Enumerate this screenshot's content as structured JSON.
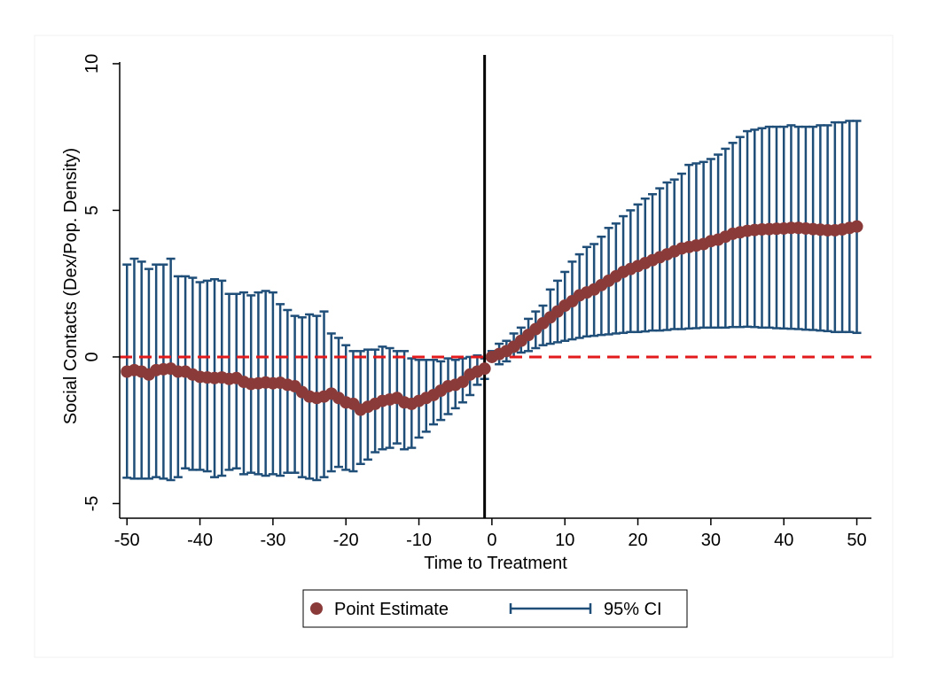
{
  "chart_data": {
    "type": "scatter",
    "title": "",
    "xlabel": "Time to Treatment",
    "ylabel": "Social Contacts (Dex/Pop. Density)",
    "xlim": [
      -51,
      52
    ],
    "ylim": [
      -5.5,
      10.3
    ],
    "xticks": [
      -50,
      -40,
      -30,
      -20,
      -10,
      0,
      10,
      20,
      30,
      40,
      50
    ],
    "xtick_labels": [
      "-50",
      "-40",
      "-30",
      "-20",
      "-10",
      "0",
      "10",
      "20",
      "30",
      "40",
      "50"
    ],
    "yticks": [
      -5,
      0,
      5,
      10
    ],
    "ytick_labels": [
      "-5",
      "0",
      "5",
      "10"
    ],
    "grid": false,
    "reference_lines": [
      {
        "orientation": "horizontal",
        "value": 0,
        "style": "dashed",
        "color": "#e31a1c"
      },
      {
        "orientation": "vertical",
        "value": -1,
        "style": "solid",
        "color": "#000000"
      }
    ],
    "x": [
      -50,
      -49,
      -48,
      -47,
      -46,
      -45,
      -44,
      -43,
      -42,
      -41,
      -40,
      -39,
      -38,
      -37,
      -36,
      -35,
      -34,
      -33,
      -32,
      -31,
      -30,
      -29,
      -28,
      -27,
      -26,
      -25,
      -24,
      -23,
      -22,
      -21,
      -20,
      -19,
      -18,
      -17,
      -16,
      -15,
      -14,
      -13,
      -12,
      -11,
      -10,
      -9,
      -8,
      -7,
      -6,
      -5,
      -4,
      -3,
      -2,
      -1,
      0,
      1,
      2,
      3,
      4,
      5,
      6,
      7,
      8,
      9,
      10,
      11,
      12,
      13,
      14,
      15,
      16,
      17,
      18,
      19,
      20,
      21,
      22,
      23,
      24,
      25,
      26,
      27,
      28,
      29,
      30,
      31,
      32,
      33,
      34,
      35,
      36,
      37,
      38,
      39,
      40,
      41,
      42,
      43,
      44,
      45,
      46,
      47,
      48,
      49,
      50
    ],
    "series": [
      {
        "name": "Point Estimate",
        "kind": "point",
        "color": "#8b3a3a",
        "values": [
          -0.5,
          -0.45,
          -0.5,
          -0.6,
          -0.45,
          -0.42,
          -0.4,
          -0.5,
          -0.5,
          -0.6,
          -0.68,
          -0.7,
          -0.72,
          -0.7,
          -0.75,
          -0.72,
          -0.85,
          -0.92,
          -0.9,
          -0.87,
          -0.9,
          -0.88,
          -0.95,
          -1.0,
          -1.2,
          -1.35,
          -1.4,
          -1.35,
          -1.25,
          -1.4,
          -1.55,
          -1.6,
          -1.8,
          -1.7,
          -1.6,
          -1.5,
          -1.45,
          -1.4,
          -1.55,
          -1.6,
          -1.5,
          -1.4,
          -1.3,
          -1.15,
          -1.0,
          -0.95,
          -0.85,
          -0.6,
          -0.5,
          -0.4,
          0.0,
          0.1,
          0.2,
          0.35,
          0.55,
          0.75,
          0.95,
          1.15,
          1.35,
          1.55,
          1.75,
          1.9,
          2.1,
          2.2,
          2.3,
          2.45,
          2.6,
          2.75,
          2.9,
          3.0,
          3.1,
          3.2,
          3.3,
          3.4,
          3.5,
          3.6,
          3.7,
          3.75,
          3.8,
          3.85,
          3.95,
          4.0,
          4.1,
          4.2,
          4.25,
          4.3,
          4.33,
          4.35,
          4.36,
          4.37,
          4.38,
          4.4,
          4.4,
          4.38,
          4.36,
          4.34,
          4.32,
          4.32,
          4.35,
          4.4,
          4.45
        ]
      },
      {
        "name": "95% CI",
        "kind": "range",
        "color": "#1f4e79",
        "lower": [
          -4.12,
          -4.15,
          -4.15,
          -4.15,
          -4.1,
          -4.15,
          -4.2,
          -4.1,
          -3.8,
          -3.85,
          -3.85,
          -3.9,
          -4.1,
          -4.05,
          -3.85,
          -3.8,
          -4.0,
          -3.95,
          -4.0,
          -4.05,
          -4.0,
          -4.05,
          -3.95,
          -3.95,
          -4.1,
          -4.15,
          -4.2,
          -4.1,
          -3.9,
          -3.75,
          -3.85,
          -3.9,
          -3.65,
          -3.5,
          -3.25,
          -3.15,
          -3.1,
          -2.95,
          -3.15,
          -3.1,
          -2.75,
          -2.55,
          -2.3,
          -2.15,
          -1.95,
          -1.75,
          -1.55,
          -1.3,
          -0.95,
          -0.75,
          0.0,
          -0.25,
          -0.15,
          0.0,
          0.15,
          0.2,
          0.3,
          0.4,
          0.45,
          0.5,
          0.55,
          0.6,
          0.65,
          0.7,
          0.72,
          0.75,
          0.77,
          0.8,
          0.82,
          0.85,
          0.85,
          0.87,
          0.9,
          0.9,
          0.92,
          0.95,
          0.95,
          0.97,
          0.98,
          1.0,
          1.0,
          1.0,
          1.0,
          1.02,
          1.02,
          1.03,
          1.02,
          1.0,
          1.0,
          0.98,
          0.97,
          0.96,
          0.95,
          0.93,
          0.92,
          0.9,
          0.88,
          0.85,
          0.85,
          0.85,
          0.82
        ],
        "upper": [
          3.15,
          3.35,
          3.25,
          3.0,
          3.15,
          3.15,
          3.35,
          2.75,
          2.75,
          2.7,
          2.55,
          2.6,
          2.65,
          2.6,
          2.15,
          2.15,
          2.2,
          2.1,
          2.2,
          2.25,
          2.2,
          1.8,
          1.6,
          1.4,
          1.35,
          1.45,
          1.4,
          1.55,
          0.8,
          0.65,
          0.4,
          0.2,
          0.2,
          0.25,
          0.25,
          0.35,
          0.3,
          0.2,
          0.2,
          -0.05,
          -0.1,
          -0.1,
          -0.1,
          -0.15,
          -0.05,
          -0.1,
          -0.05,
          0.0,
          0.05,
          -0.05,
          0.2,
          0.45,
          0.55,
          0.8,
          1.0,
          1.3,
          1.55,
          1.75,
          2.3,
          2.6,
          2.9,
          3.25,
          3.5,
          3.75,
          3.85,
          4.1,
          4.4,
          4.55,
          4.8,
          5.0,
          5.2,
          5.4,
          5.55,
          5.75,
          5.95,
          6.05,
          6.25,
          6.55,
          6.6,
          6.65,
          6.75,
          6.9,
          7.1,
          7.3,
          7.5,
          7.7,
          7.75,
          7.8,
          7.85,
          7.85,
          7.85,
          7.9,
          7.85,
          7.85,
          7.85,
          7.9,
          7.9,
          8.0,
          8.0,
          8.05,
          8.05
        ]
      }
    ],
    "legend": {
      "position": "bottom-center",
      "entries": [
        {
          "label": "Point Estimate",
          "symbol": "filled-circle",
          "color": "#8b3a3a"
        },
        {
          "label": "95% CI",
          "symbol": "capped-range",
          "color": "#1f4e79"
        }
      ]
    }
  }
}
